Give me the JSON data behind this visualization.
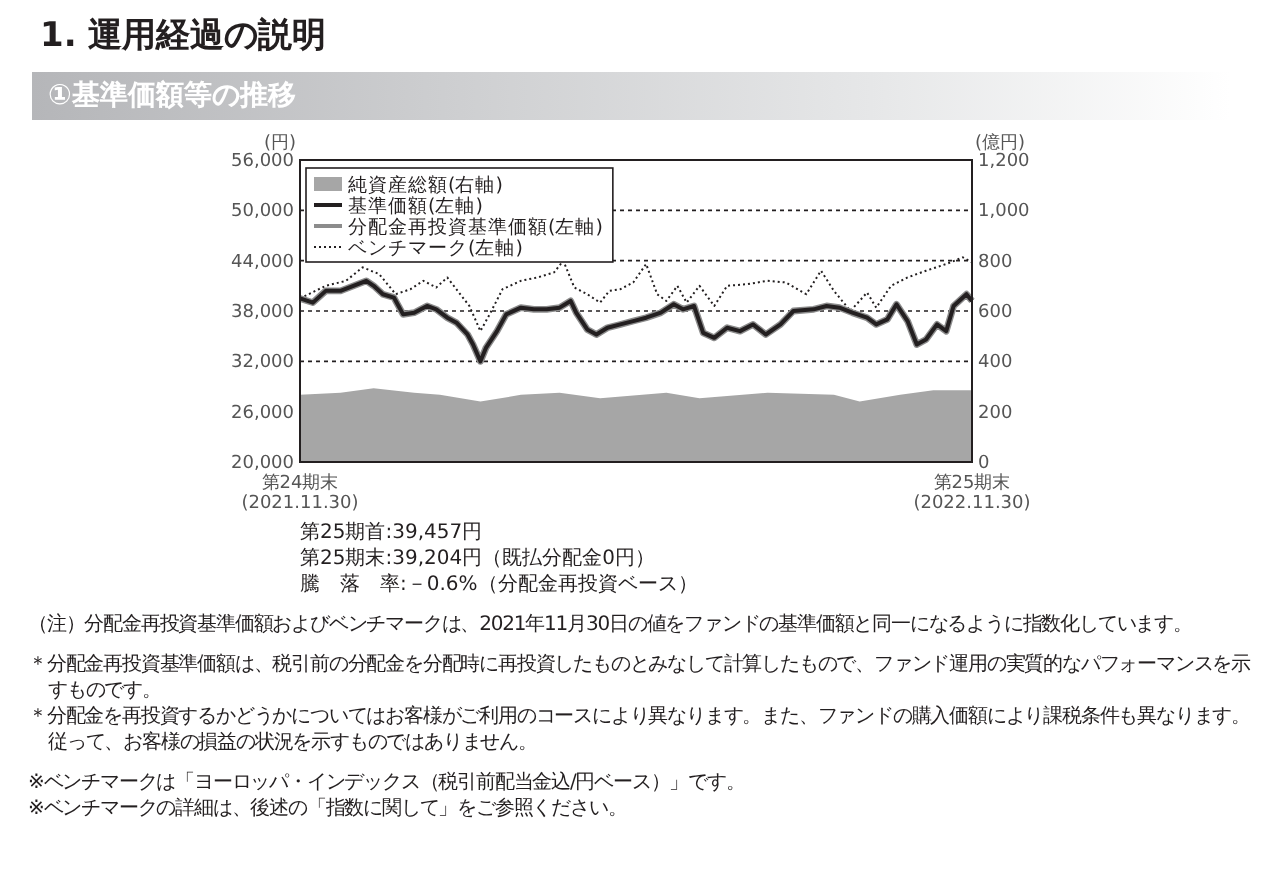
{
  "chart_data": {
    "type": "line",
    "title": "1. 運用経過の説明",
    "subtitle": "①基準価額等の推移",
    "ylabel": "(円)",
    "y2label": "(億円)",
    "xlim": [
      "2021-11-30",
      "2022-11-30"
    ],
    "xticks": [
      {
        "value": "2021-11-30",
        "label": "第24期末\n(2021.11.30)"
      },
      {
        "value": "2022-11-30",
        "label": "第25期末\n(2022.11.30)"
      }
    ],
    "ylim": [
      20000,
      56000
    ],
    "yticks": [
      {
        "value": 20000,
        "label": "20,000"
      },
      {
        "value": 26000,
        "label": "26,000"
      },
      {
        "value": 32000,
        "label": "32,000"
      },
      {
        "value": 38000,
        "label": "38,000"
      },
      {
        "value": 44000,
        "label": "44,000"
      },
      {
        "value": 50000,
        "label": "50,000"
      },
      {
        "value": 56000,
        "label": "56,000"
      }
    ],
    "y2lim": [
      0,
      1200
    ],
    "y2ticks": [
      0,
      200,
      400,
      600,
      800,
      {
        "value": 1000,
        "label": "1,000"
      },
      {
        "value": 1200,
        "label": "1,200"
      }
    ],
    "grid": "y",
    "legend": "top left",
    "series": [
      {
        "name": "純資産総額(右軸)",
        "type": "area",
        "axis": "y2",
        "color": "#a6a6a6",
        "x": [
          "2021-11-30",
          "2021-12-22",
          "2022-01-09",
          "2022-01-31",
          "2022-02-14",
          "2022-03-08",
          "2022-03-30",
          "2022-04-20",
          "2022-05-12",
          "2022-06-17",
          "2022-07-05",
          "2022-08-11",
          "2022-09-16",
          "2022-09-30",
          "2022-10-22",
          "2022-11-09",
          "2022-11-30"
        ],
        "values": [
          267,
          275,
          293,
          275,
          267,
          240,
          267,
          275,
          253,
          275,
          253,
          275,
          267,
          240,
          267,
          285,
          285
        ]
      },
      {
        "name": "基準価額(左軸)",
        "color": "#231f20",
        "line_style": "solid",
        "x": [
          "2021-11-30",
          "2021-12-07",
          "2021-12-14",
          "2021-12-22",
          "2021-12-29",
          "2022-01-05",
          "2022-01-09",
          "2022-01-14",
          "2022-01-20",
          "2022-01-25",
          "2022-01-31",
          "2022-02-07",
          "2022-02-12",
          "2022-02-18",
          "2022-02-23",
          "2022-03-01",
          "2022-03-04",
          "2022-03-08",
          "2022-03-11",
          "2022-03-17",
          "2022-03-22",
          "2022-03-30",
          "2022-04-06",
          "2022-04-13",
          "2022-04-20",
          "2022-04-26",
          "2022-04-29",
          "2022-05-05",
          "2022-05-10",
          "2022-05-16",
          "2022-05-23",
          "2022-05-30",
          "2022-06-06",
          "2022-06-14",
          "2022-06-21",
          "2022-06-26",
          "2022-07-02",
          "2022-07-07",
          "2022-07-13",
          "2022-07-20",
          "2022-07-27",
          "2022-08-03",
          "2022-08-10",
          "2022-08-18",
          "2022-08-25",
          "2022-09-05",
          "2022-09-12",
          "2022-09-19",
          "2022-09-26",
          "2022-10-04",
          "2022-10-09",
          "2022-10-15",
          "2022-10-20",
          "2022-10-26",
          "2022-10-31",
          "2022-11-05",
          "2022-11-11",
          "2022-11-16",
          "2022-11-20",
          "2022-11-27",
          "2022-11-30"
        ],
        "values": [
          39500,
          39000,
          40400,
          40400,
          41000,
          41600,
          41000,
          40000,
          39600,
          37600,
          37800,
          38600,
          38200,
          37200,
          36600,
          35200,
          34000,
          32000,
          33600,
          35600,
          37600,
          38400,
          38200,
          38200,
          38400,
          39200,
          37800,
          35800,
          35200,
          36000,
          36400,
          36800,
          37200,
          37800,
          38800,
          38200,
          38600,
          35400,
          34800,
          36000,
          35600,
          36400,
          35200,
          36400,
          38000,
          38200,
          38600,
          38400,
          37800,
          37200,
          36400,
          37000,
          38800,
          36800,
          34000,
          34600,
          36400,
          35600,
          38600,
          40000,
          39200
        ]
      },
      {
        "name": "分配金再投資基準価額(左軸)",
        "color": "#8c8c8c",
        "line_style": "solid",
        "x": [
          "2021-11-30",
          "2021-12-07",
          "2021-12-14",
          "2021-12-22",
          "2021-12-29",
          "2022-01-05",
          "2022-01-09",
          "2022-01-14",
          "2022-01-20",
          "2022-01-25",
          "2022-01-31",
          "2022-02-07",
          "2022-02-12",
          "2022-02-18",
          "2022-02-23",
          "2022-03-01",
          "2022-03-04",
          "2022-03-08",
          "2022-03-11",
          "2022-03-17",
          "2022-03-22",
          "2022-03-30",
          "2022-04-06",
          "2022-04-13",
          "2022-04-20",
          "2022-04-26",
          "2022-04-29",
          "2022-05-05",
          "2022-05-10",
          "2022-05-16",
          "2022-05-23",
          "2022-05-30",
          "2022-06-06",
          "2022-06-14",
          "2022-06-21",
          "2022-06-26",
          "2022-07-02",
          "2022-07-07",
          "2022-07-13",
          "2022-07-20",
          "2022-07-27",
          "2022-08-03",
          "2022-08-10",
          "2022-08-18",
          "2022-08-25",
          "2022-09-05",
          "2022-09-12",
          "2022-09-19",
          "2022-09-26",
          "2022-10-04",
          "2022-10-09",
          "2022-10-15",
          "2022-10-20",
          "2022-10-26",
          "2022-10-31",
          "2022-11-05",
          "2022-11-11",
          "2022-11-16",
          "2022-11-20",
          "2022-11-27",
          "2022-11-30"
        ],
        "values": [
          39500,
          39000,
          40400,
          40400,
          41000,
          41600,
          41000,
          40000,
          39600,
          37600,
          37800,
          38600,
          38200,
          37200,
          36600,
          35200,
          34000,
          32000,
          33600,
          35600,
          37600,
          38400,
          38200,
          38200,
          38400,
          39200,
          37800,
          35800,
          35200,
          36000,
          36400,
          36800,
          37200,
          37800,
          38800,
          38200,
          38600,
          35400,
          34800,
          36000,
          35600,
          36400,
          35200,
          36400,
          38000,
          38200,
          38600,
          38400,
          37800,
          37200,
          36400,
          37000,
          38800,
          36800,
          34000,
          34600,
          36400,
          35600,
          38600,
          40000,
          39200
        ]
      },
      {
        "name": "ベンチマーク(左軸)",
        "color": "#231f20",
        "line_style": "dotted",
        "x": [
          "2021-11-30",
          "2021-12-14",
          "2021-12-25",
          "2022-01-03",
          "2022-01-12",
          "2022-01-21",
          "2022-01-29",
          "2022-02-05",
          "2022-02-12",
          "2022-02-18",
          "2022-02-25",
          "2022-03-02",
          "2022-03-08",
          "2022-03-13",
          "2022-03-20",
          "2022-03-30",
          "2022-04-08",
          "2022-04-17",
          "2022-04-22",
          "2022-04-28",
          "2022-05-05",
          "2022-05-12",
          "2022-05-17",
          "2022-05-23",
          "2022-05-30",
          "2022-06-06",
          "2022-06-12",
          "2022-06-17",
          "2022-06-23",
          "2022-06-28",
          "2022-07-05",
          "2022-07-13",
          "2022-07-20",
          "2022-07-31",
          "2022-08-11",
          "2022-08-21",
          "2022-09-01",
          "2022-09-09",
          "2022-09-16",
          "2022-09-25",
          "2022-10-04",
          "2022-10-09",
          "2022-10-17",
          "2022-10-26",
          "2022-11-05",
          "2022-11-16",
          "2022-11-25",
          "2022-11-30"
        ],
        "values": [
          39500,
          41000,
          41600,
          43200,
          42400,
          40000,
          40600,
          41600,
          40800,
          42000,
          40000,
          38600,
          35600,
          37600,
          40600,
          41600,
          42000,
          42600,
          44000,
          40800,
          40000,
          39000,
          40400,
          40600,
          41400,
          43600,
          40000,
          39200,
          41000,
          39000,
          41000,
          38600,
          41000,
          41200,
          41600,
          41400,
          40000,
          42800,
          40400,
          38000,
          40200,
          38400,
          41000,
          42000,
          42800,
          43600,
          44400,
          43800
        ]
      }
    ],
    "annotations": [
      "第25期首:39,457円",
      "第25期末:39,204円（既払分配金0円）",
      "騰　落　率:－0.6%（分配金再投資ベース）",
      "（注）分配金再投資基準価額およびベンチマークは、2021年11月30日の値をファンドの基準価額と同一になるように指数化しています。",
      "＊分配金再投資基準価額は、税引前の分配金を分配時に再投資したものとみなして計算したもので、ファンド運用の実質的なパフォーマンスを示すものです。",
      "＊分配金を再投資するかどうかについてはお客様がご利用のコースにより異なります。また、ファンドの購入価額により課税条件も異なります。従って、お客様の損益の状況を示すものではありません。",
      "※ベンチマークは「ヨーロッパ・インデックス（税引前配当金込/円ベース）」です。",
      "※ベンチマークの詳細は、後述の「指数に関して」をご参照ください。"
    ]
  }
}
